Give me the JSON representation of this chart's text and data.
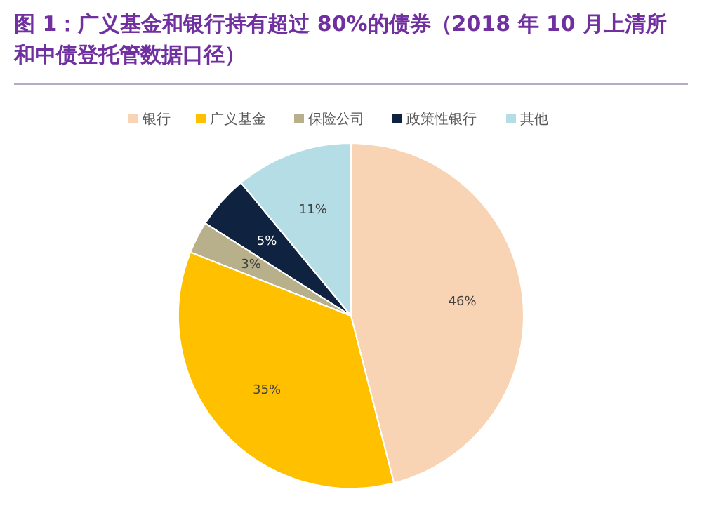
{
  "chart_data": {
    "type": "pie",
    "title": "图 1：广义基金和银行持有超过 80%的债券（2018 年 10 月上清所和中债登托管数据口径）",
    "categories": [
      "银行",
      "广义基金",
      "保险公司",
      "政策性银行",
      "其他"
    ],
    "values": [
      46,
      35,
      3,
      5,
      11
    ],
    "value_labels": [
      "46%",
      "35%",
      "3%",
      "5%",
      "11%"
    ],
    "colors": [
      "#f8d3b4",
      "#ffc000",
      "#b8b08a",
      "#0f223f",
      "#b4dde6"
    ],
    "legend": "top"
  }
}
